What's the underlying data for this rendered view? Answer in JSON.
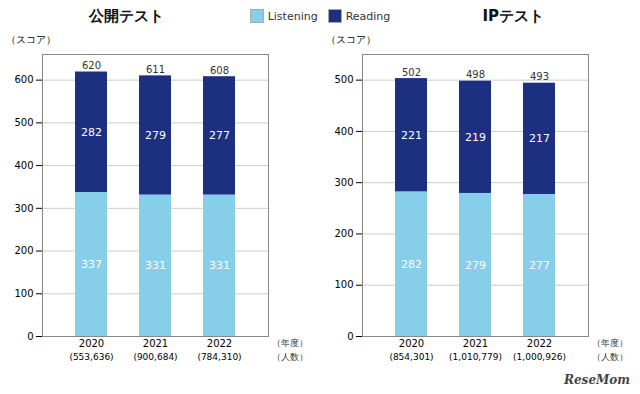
{
  "chart_data": [
    {
      "type": "bar",
      "title": "公開テスト",
      "categories": [
        "2020",
        "2021",
        "2022"
      ],
      "series": [
        {
          "name": "Listening",
          "color": "#87CEEB",
          "values": [
            337,
            331,
            331
          ]
        },
        {
          "name": "Reading",
          "color": "#1C2F80",
          "values": [
            282,
            279,
            277
          ]
        }
      ],
      "totals": [
        620,
        611,
        608
      ],
      "counts": [
        "(553,636)",
        "(900,684)",
        "(784,310)"
      ],
      "xlabel": "（年度）",
      "counts_label": "（人数）",
      "ylabel": "（スコア）",
      "ylim": [
        0,
        660
      ],
      "yticks": [
        0,
        100,
        200,
        300,
        400,
        500,
        600
      ],
      "grid": true,
      "stacked": true,
      "data_labels": true,
      "legend": "top"
    },
    {
      "type": "bar",
      "title": "IPテスト",
      "categories": [
        "2020",
        "2021",
        "2022"
      ],
      "series": [
        {
          "name": "Listening",
          "color": "#87CEEB",
          "values": [
            282,
            279,
            277
          ]
        },
        {
          "name": "Reading",
          "color": "#1C2F80",
          "values": [
            221,
            219,
            217
          ]
        }
      ],
      "totals": [
        502,
        498,
        493
      ],
      "counts": [
        "(854,301)",
        "(1,010,779)",
        "(1,000,926)"
      ],
      "xlabel": "（年度）",
      "counts_label": "（人数）",
      "ylabel": "（スコア）",
      "ylim": [
        0,
        550
      ],
      "yticks": [
        0,
        100,
        200,
        300,
        400,
        500
      ],
      "grid": true,
      "stacked": true,
      "data_labels": true,
      "legend": "top"
    }
  ],
  "watermark": "ReseMom"
}
